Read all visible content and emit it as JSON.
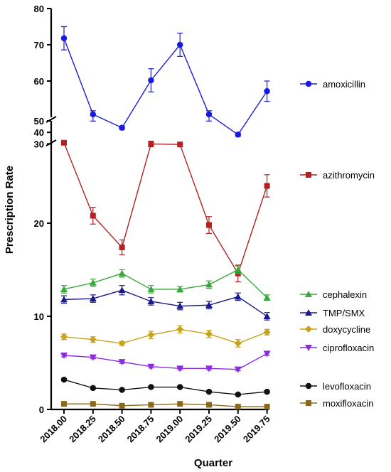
{
  "chart_data": {
    "type": "line",
    "xlabel": "Quarter",
    "ylabel": "Prescription Rate",
    "x": [
      "2018.00",
      "2018.25",
      "2018.50",
      "2018.75",
      "2019.00",
      "2019.25",
      "2019.50",
      "2019.75"
    ],
    "y_ticks": [
      {
        "value": 0,
        "label": "0"
      },
      {
        "value": 10,
        "label": "10"
      },
      {
        "value": 20,
        "label": "20"
      },
      {
        "value": 30,
        "label": "30"
      },
      {
        "value": 40,
        "label": "40"
      },
      {
        "value": 50,
        "label": "50"
      },
      {
        "value": 60,
        "label": "60"
      },
      {
        "value": 70,
        "label": "70"
      },
      {
        "value": 80,
        "label": "80"
      }
    ],
    "axis_segments": [
      [
        0,
        29
      ],
      [
        29,
        50
      ],
      [
        50,
        80
      ]
    ],
    "legend_placement": "right",
    "series": [
      {
        "name": "amoxicillin",
        "color": "#1a1adf",
        "marker": "circle",
        "values": [
          71.8,
          50.8,
          44.0,
          60.2,
          70.0,
          50.8,
          38.0,
          57.2
        ],
        "errors": [
          3.2,
          1.0,
          1.5,
          3.2,
          3.2,
          1.0,
          1.5,
          2.8
        ]
      },
      {
        "name": "azithromycin",
        "color": "#b22222",
        "marker": "square",
        "values": [
          31.0,
          20.8,
          17.4,
          28.5,
          29.5,
          19.8,
          14.6,
          24.0
        ],
        "errors": [
          0.5,
          0.9,
          0.8,
          0.3,
          0.3,
          0.9,
          0.9,
          1.2
        ]
      },
      {
        "name": "cephalexin",
        "color": "#3aa83a",
        "marker": "triangle",
        "values": [
          12.9,
          13.6,
          14.6,
          12.9,
          12.9,
          13.4,
          15.0,
          12.0
        ],
        "errors": [
          0.4,
          0.4,
          0.4,
          0.4,
          0.3,
          0.4,
          0.4,
          0.3
        ]
      },
      {
        "name": "TMP/SMX",
        "color": "#1a1a8a",
        "marker": "triangle",
        "values": [
          11.8,
          11.9,
          12.8,
          11.6,
          11.1,
          11.2,
          12.1,
          10.0
        ],
        "errors": [
          0.4,
          0.4,
          0.5,
          0.4,
          0.4,
          0.4,
          0.4,
          0.4
        ]
      },
      {
        "name": "doxycycline",
        "color": "#c8a21a",
        "marker": "diamond",
        "values": [
          7.8,
          7.5,
          7.1,
          8.0,
          8.6,
          8.1,
          7.1,
          8.3
        ],
        "errors": [
          0.3,
          0.3,
          0.2,
          0.4,
          0.4,
          0.4,
          0.4,
          0.3
        ]
      },
      {
        "name": "ciprofloxacin",
        "color": "#8a2be2",
        "marker": "triangle-down",
        "values": [
          5.8,
          5.6,
          5.1,
          4.6,
          4.4,
          4.4,
          4.3,
          6.0
        ],
        "errors": [
          0.15,
          0.15,
          0.15,
          0.15,
          0.15,
          0.15,
          0.15,
          0.2
        ]
      },
      {
        "name": "levofloxacin",
        "color": "#111111",
        "marker": "circle",
        "values": [
          3.2,
          2.3,
          2.1,
          2.4,
          2.4,
          1.9,
          1.6,
          1.9
        ],
        "errors": [
          0.1,
          0.1,
          0.1,
          0.1,
          0.1,
          0.1,
          0.1,
          0.1
        ]
      },
      {
        "name": "moxifloxacin",
        "color": "#8a6a1a",
        "marker": "square",
        "values": [
          0.6,
          0.6,
          0.4,
          0.5,
          0.6,
          0.5,
          0.3,
          0.3
        ],
        "errors": [
          0.05,
          0.05,
          0.05,
          0.05,
          0.05,
          0.05,
          0.05,
          0.05
        ]
      }
    ]
  }
}
